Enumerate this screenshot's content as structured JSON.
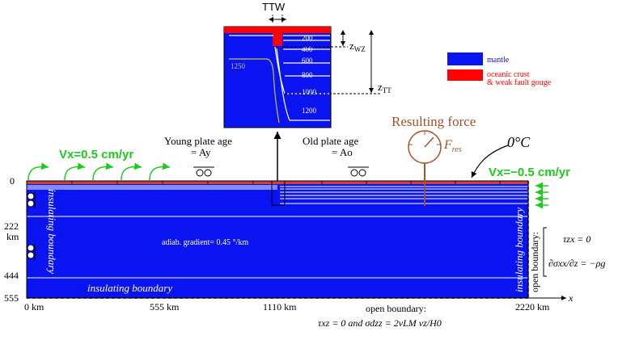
{
  "colors": {
    "mantle": "#0a14f0",
    "crust": "#ff0000",
    "arrow_green": "#1ec81e",
    "force_brown": "#a0522d",
    "white": "#ffffff",
    "isotherm_yellow": "#c8c84a"
  },
  "inset": {
    "ttw_label": "TTW",
    "isotherms": [
      "200",
      "400",
      "600",
      "800",
      "1000",
      "1200"
    ],
    "label_1250": "1250",
    "zwz_label": "z",
    "zwz_sub": "WZ",
    "ztt_label": "z",
    "ztt_sub": "TT"
  },
  "legend": {
    "mantle": "mantle",
    "crust_line1": "oceanic crust",
    "crust_line2": "& weak fault gouge"
  },
  "labels": {
    "vx_left": "Vx=0.5 cm/yr",
    "vx_right": "Vx=−0.5 cm/yr",
    "young_line1": "Young plate age",
    "young_line2": "= Ay",
    "old_line1": "Old plate age",
    "old_line2": "= Ao",
    "resulting_force": "Resulting force",
    "fres": "F",
    "fres_sub": "res",
    "zero_c": "0°C",
    "adiabat": "adiab. gradient= 0.45 °/km",
    "insulating_bottom": "insulating boundary",
    "insulating_left": "insulating boundary",
    "insulating_right": "insulating boundary",
    "open_boundary_bottom": "open boundary:",
    "bottom_condition": "τxz = 0 and σdzz = 2νLM vz/H0",
    "open_boundary_right": "open boundary:",
    "right_condition_1": "τzx = 0",
    "right_condition_2": "∂σxx/∂z = −ρg",
    "x_axis": "x"
  },
  "axis": {
    "x_ticks": [
      "0 km",
      "555 km",
      "1110 km",
      "2220 km"
    ],
    "y_ticks": [
      "0",
      "222",
      "444",
      "555"
    ],
    "y_unit": "km"
  }
}
